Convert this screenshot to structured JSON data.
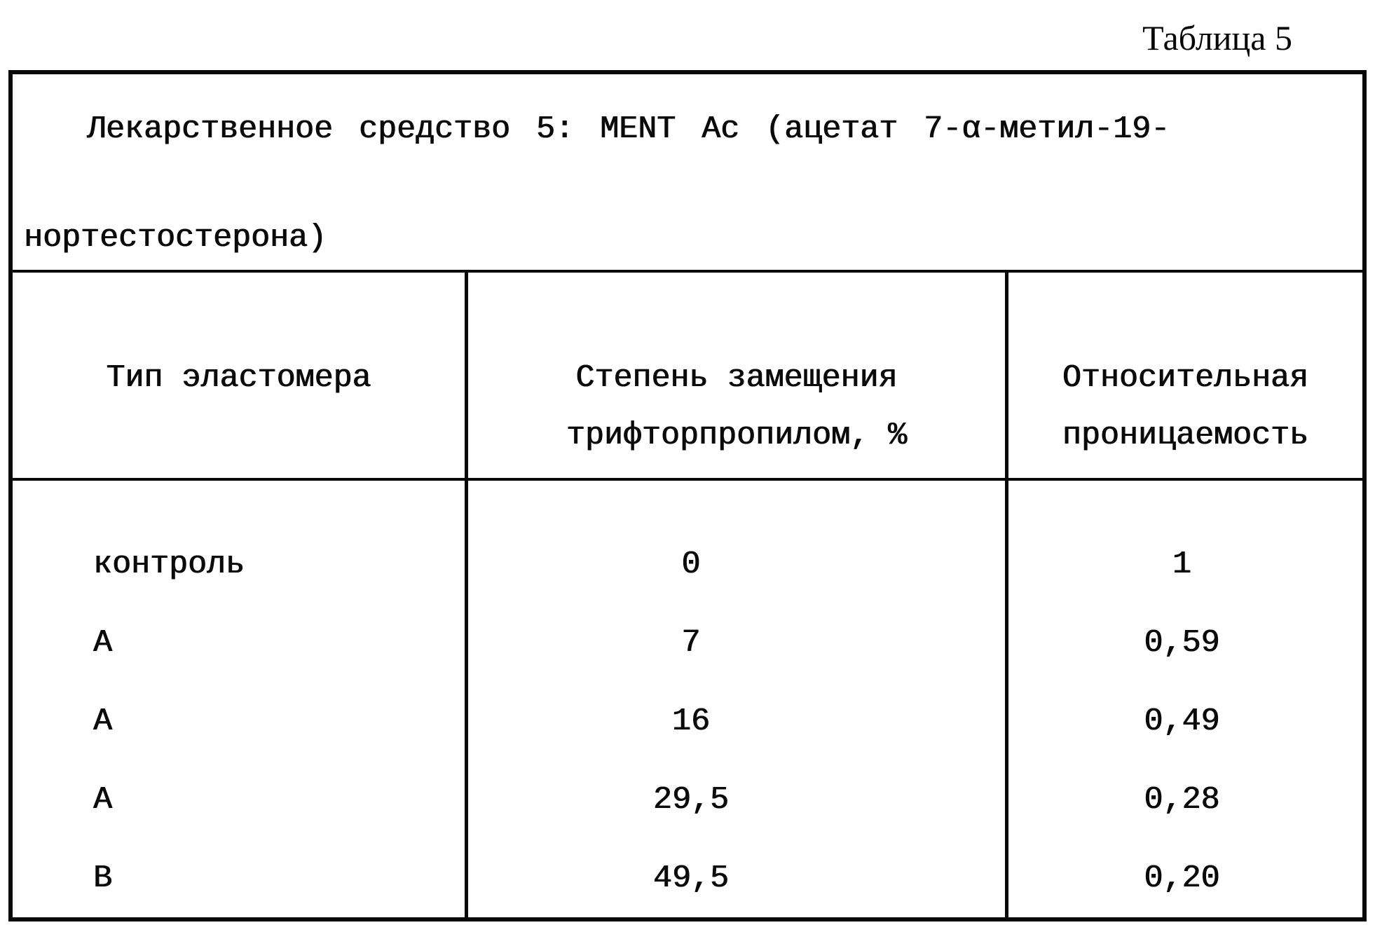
{
  "caption": "Таблица 5",
  "table": {
    "title_lines": [
      "Лекарственное средство 5: MENT Ac (ацетат 7-α-метил-19-",
      "нортестостерона)"
    ],
    "headers": [
      {
        "lines": [
          "Тип эластомера"
        ]
      },
      {
        "lines": [
          "Степень замещения",
          "трифторпропилом, %"
        ]
      },
      {
        "lines": [
          "Относительная",
          "проницаемость"
        ]
      }
    ],
    "rows": [
      {
        "type": "контроль",
        "substitution": "0",
        "permeability": "1"
      },
      {
        "type": "A",
        "substitution": "7",
        "permeability": "0,59"
      },
      {
        "type": "A",
        "substitution": "16",
        "permeability": "0,49"
      },
      {
        "type": "A",
        "substitution": "29,5",
        "permeability": "0,28"
      },
      {
        "type": "B",
        "substitution": "49,5",
        "permeability": "0,20"
      }
    ]
  }
}
